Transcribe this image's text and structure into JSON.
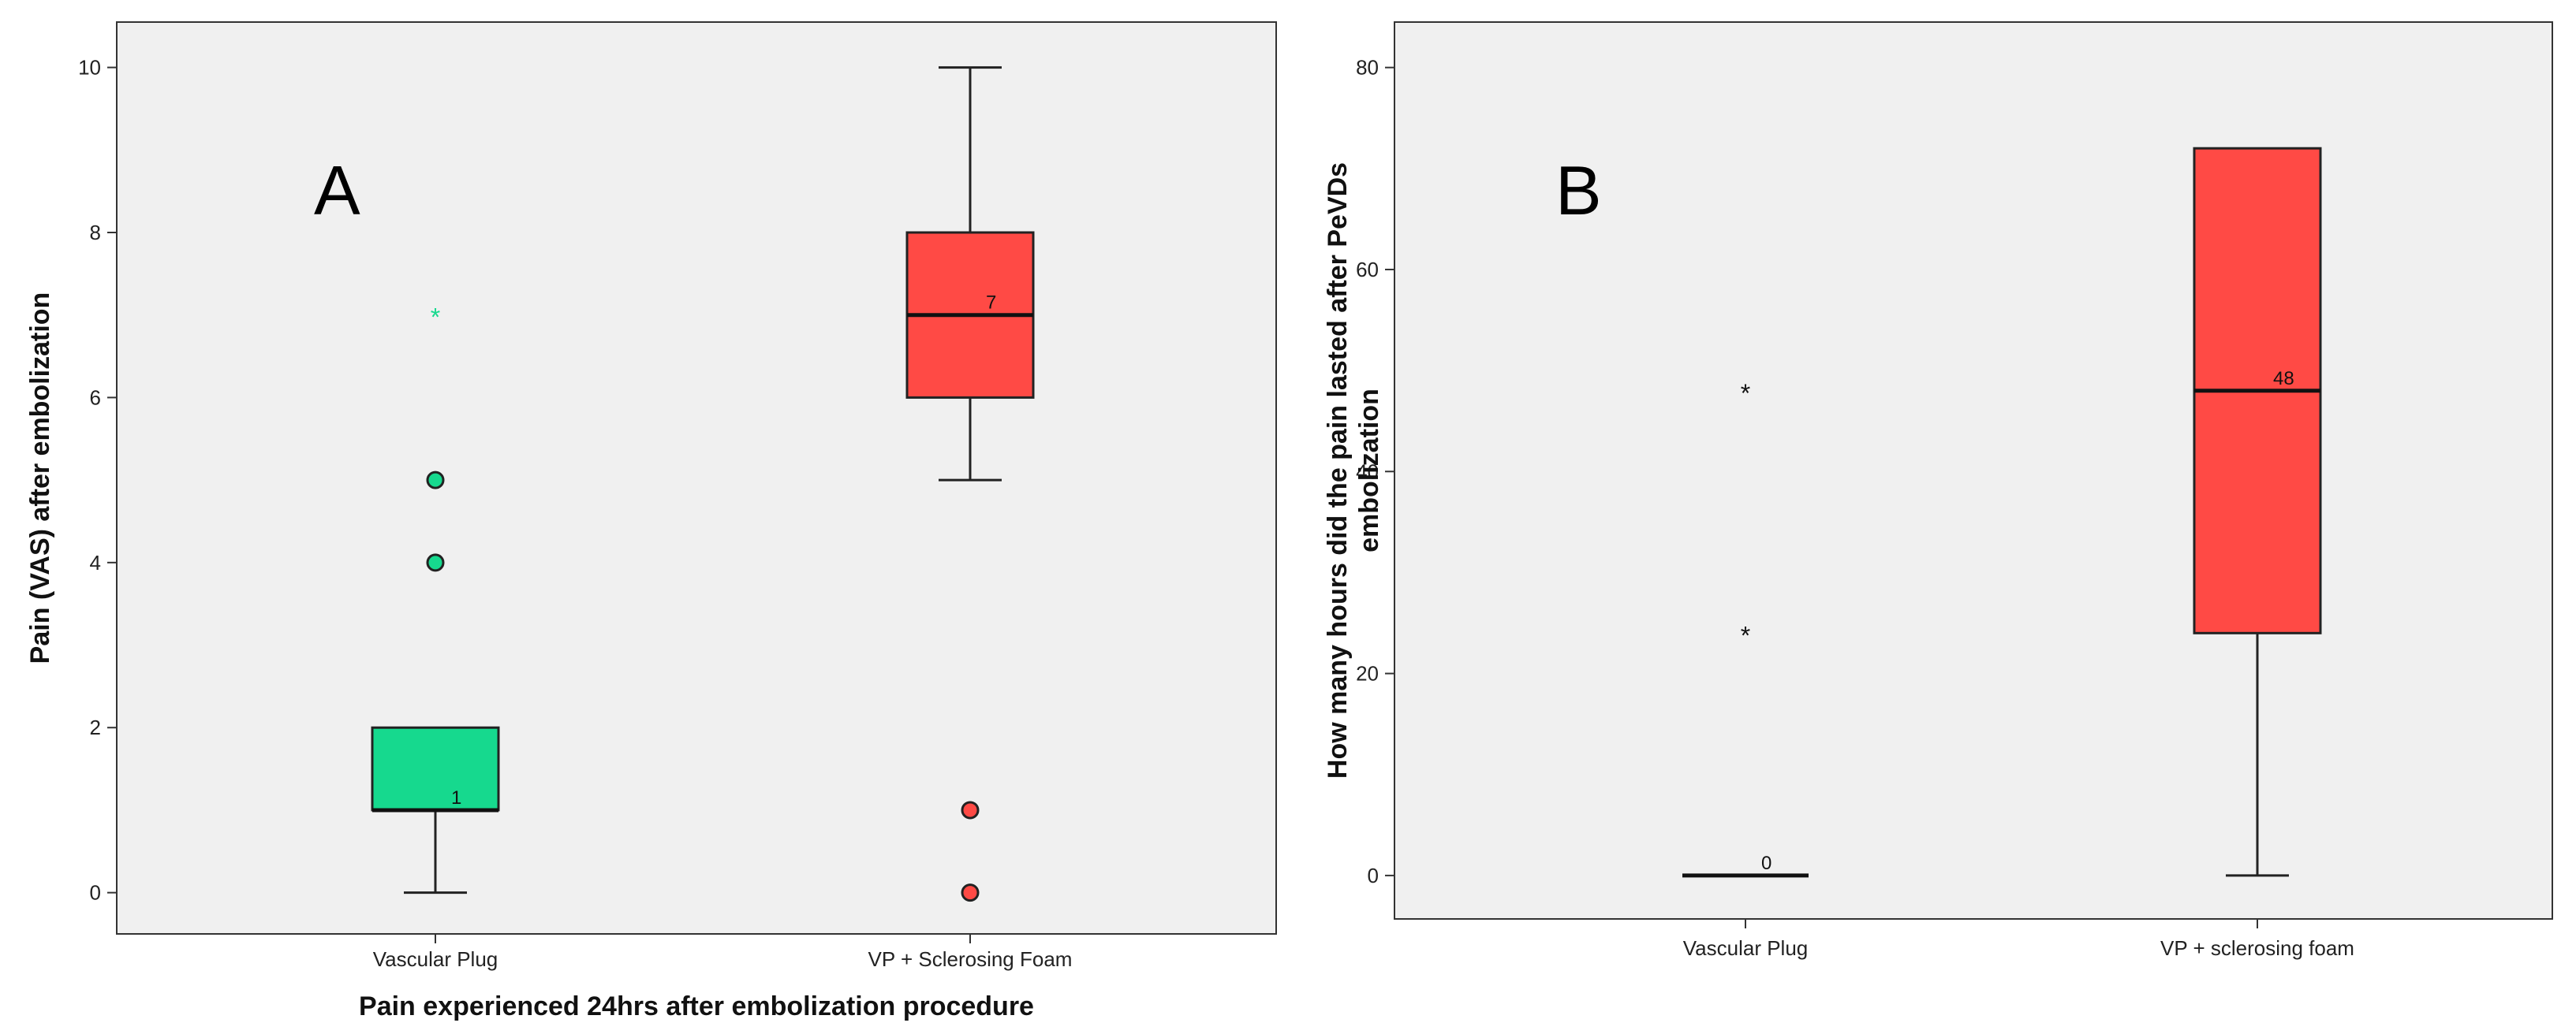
{
  "chart_data": [
    {
      "panel": "A",
      "type": "boxplot",
      "panel_label": "A",
      "xlabel": "Pain experienced 24hrs after embolization procedure",
      "ylabel": "Pain (VAS) after embolization",
      "ylim": [
        -0.5,
        10.55
      ],
      "yticks": [
        0,
        2,
        4,
        6,
        8,
        10
      ],
      "categories": [
        "Vascular Plug",
        "VP + Sclerosing Foam"
      ],
      "boxes": [
        {
          "category": "Vascular Plug",
          "color": "#16d98e",
          "whisker_low": 0,
          "q1": 1,
          "median": 1,
          "q3": 2,
          "whisker_high": 2,
          "median_label": "1",
          "outliers": [
            4,
            5
          ],
          "extremes": [
            7
          ],
          "extreme_color": "#16d98e"
        },
        {
          "category": "VP + Sclerosing Foam",
          "color": "#ff4a45",
          "whisker_low": 5,
          "q1": 6,
          "median": 7,
          "q3": 8,
          "whisker_high": 10,
          "median_label": "7",
          "outliers": [
            0,
            1
          ],
          "extremes": [],
          "extreme_color": "#ff4a45"
        }
      ]
    },
    {
      "panel": "B",
      "type": "boxplot",
      "panel_label": "B",
      "xlabel": "",
      "ylabel": "How many hours did the pain lasted after PeVDs embolization",
      "ylabel_lines": [
        "How many hours did the pain lasted after PeVDs",
        "embolization"
      ],
      "ylim": [
        -4.3,
        84.5
      ],
      "yticks": [
        0,
        20,
        40,
        60,
        80
      ],
      "categories": [
        "Vascular Plug",
        "VP + sclerosing foam"
      ],
      "boxes": [
        {
          "category": "Vascular Plug",
          "color": "#16d98e",
          "whisker_low": 0,
          "q1": 0,
          "median": 0,
          "q3": 0,
          "whisker_high": 0,
          "median_label": "0",
          "outliers": [],
          "extremes": [
            24,
            48
          ],
          "extreme_color": "#111111"
        },
        {
          "category": "VP + sclerosing foam",
          "color": "#ff4a45",
          "whisker_low": 0,
          "q1": 24,
          "median": 48,
          "q3": 72,
          "whisker_high": 72,
          "median_label": "48",
          "outliers": [],
          "extremes": [],
          "extreme_color": "#111111"
        }
      ]
    }
  ]
}
